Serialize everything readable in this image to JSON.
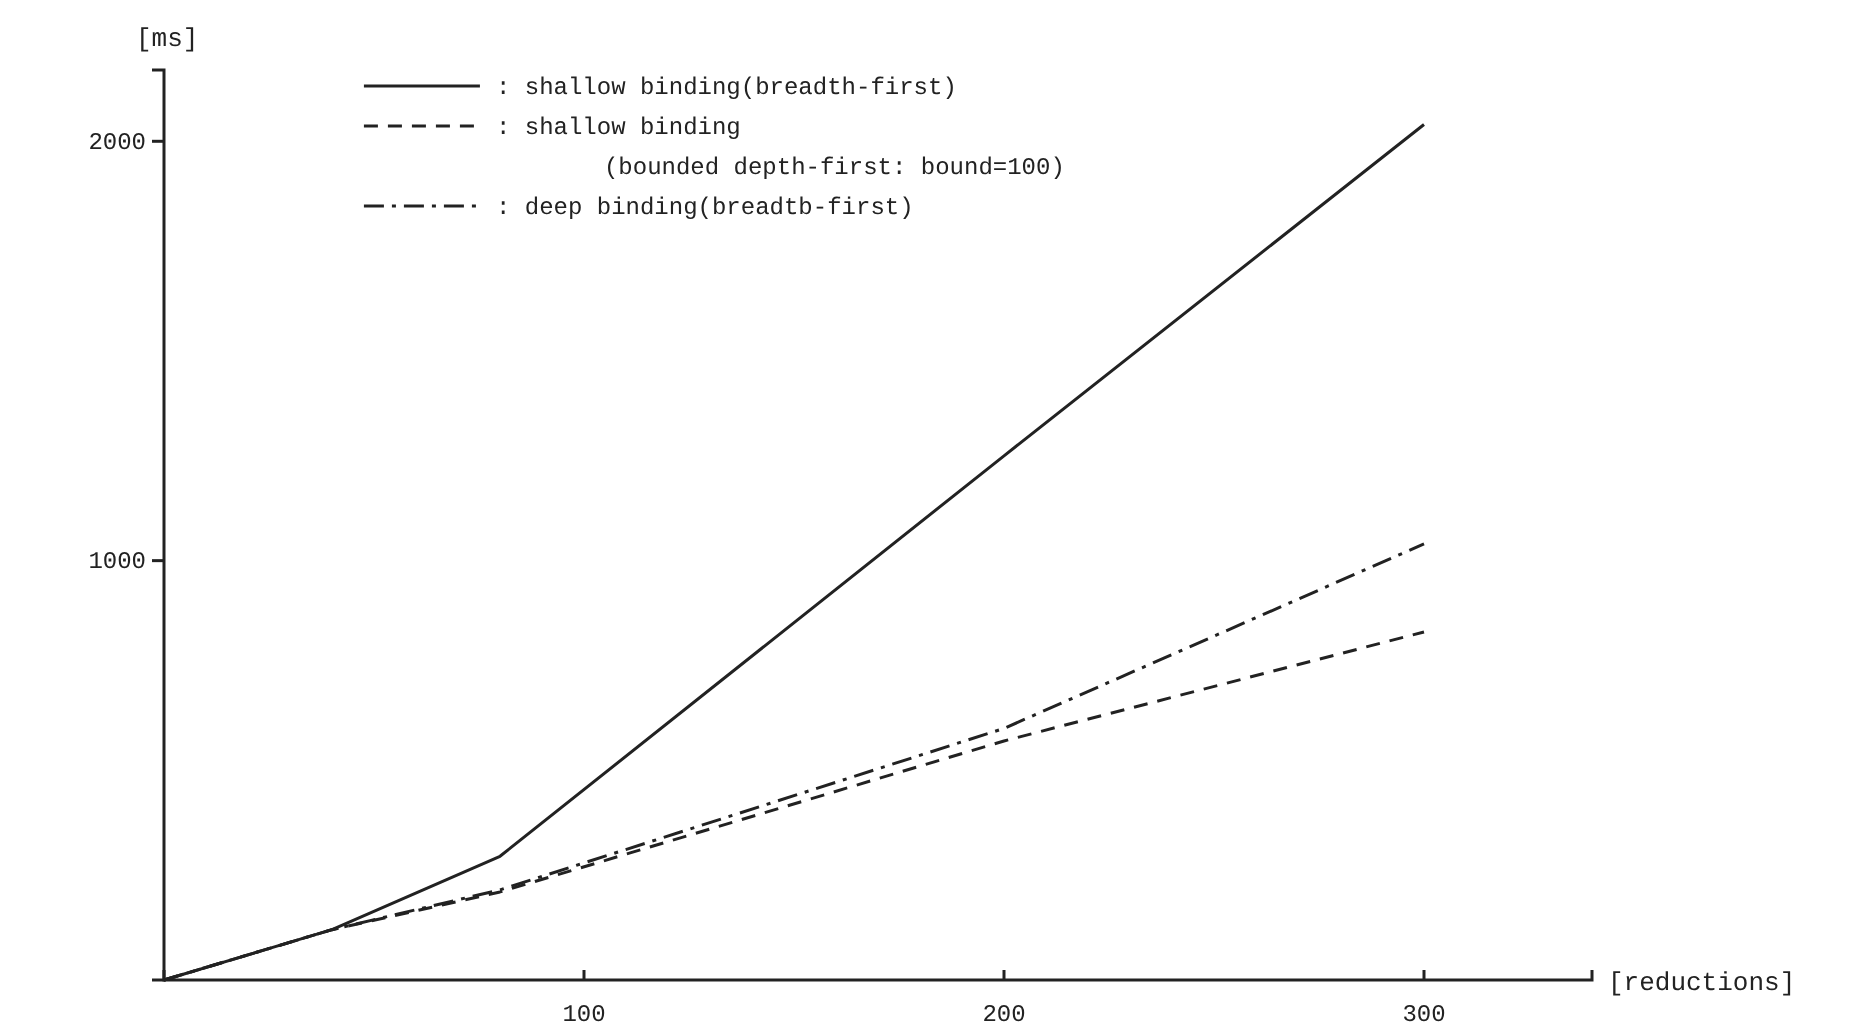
{
  "chart_data": {
    "type": "line",
    "xlabel": "[reductions]",
    "ylabel": "[ms]",
    "x": [
      0,
      40,
      80,
      200,
      300
    ],
    "xlim": [
      0,
      340
    ],
    "xticks": [
      100,
      200,
      300
    ],
    "ylim": [
      0,
      2170
    ],
    "yticks": [
      1000,
      2000
    ],
    "grid": false,
    "legend": "top",
    "marker": "none",
    "series": [
      {
        "name": ": shallow binding(breadth-first)",
        "color": "#222222",
        "line_style": "solid",
        "values": [
          0,
          120,
          295,
          1250,
          2040
        ]
      },
      {
        "name": ": shallow binding\n(bounded depth-first: bound=100)",
        "color": "#222222",
        "line_style": "dashed",
        "values": [
          0,
          120,
          210,
          570,
          830
        ]
      },
      {
        "name": ": deep binding(breadtb-first)",
        "color": "#222222",
        "line_style": "dashdot",
        "values": [
          0,
          120,
          215,
          600,
          1040
        ]
      }
    ]
  }
}
